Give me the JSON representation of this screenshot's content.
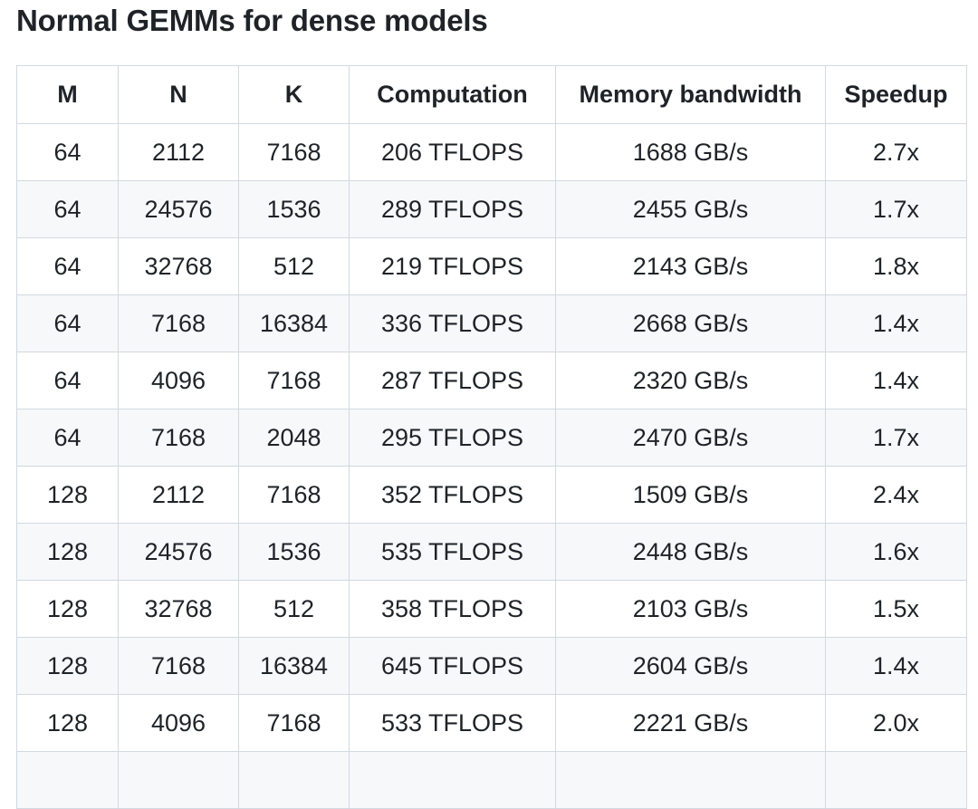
{
  "page": {
    "title": "Normal GEMMs for dense models"
  },
  "table": {
    "columns": [
      "M",
      "N",
      "K",
      "Computation",
      "Memory bandwidth",
      "Speedup"
    ],
    "rows": [
      [
        "64",
        "2112",
        "7168",
        "206 TFLOPS",
        "1688 GB/s",
        "2.7x"
      ],
      [
        "64",
        "24576",
        "1536",
        "289 TFLOPS",
        "2455 GB/s",
        "1.7x"
      ],
      [
        "64",
        "32768",
        "512",
        "219 TFLOPS",
        "2143 GB/s",
        "1.8x"
      ],
      [
        "64",
        "7168",
        "16384",
        "336 TFLOPS",
        "2668 GB/s",
        "1.4x"
      ],
      [
        "64",
        "4096",
        "7168",
        "287 TFLOPS",
        "2320 GB/s",
        "1.4x"
      ],
      [
        "64",
        "7168",
        "2048",
        "295 TFLOPS",
        "2470 GB/s",
        "1.7x"
      ],
      [
        "128",
        "2112",
        "7168",
        "352 TFLOPS",
        "1509 GB/s",
        "2.4x"
      ],
      [
        "128",
        "24576",
        "1536",
        "535 TFLOPS",
        "2448 GB/s",
        "1.6x"
      ],
      [
        "128",
        "32768",
        "512",
        "358 TFLOPS",
        "2103 GB/s",
        "1.5x"
      ],
      [
        "128",
        "7168",
        "16384",
        "645 TFLOPS",
        "2604 GB/s",
        "1.4x"
      ],
      [
        "128",
        "4096",
        "7168",
        "533 TFLOPS",
        "2221 GB/s",
        "2.0x"
      ]
    ],
    "partial_row_count": 1
  },
  "colors": {
    "text": "#1f2328",
    "border": "#d1d9e0",
    "row_bg": "#ffffff",
    "row_alt_bg": "#f6f8fa"
  }
}
